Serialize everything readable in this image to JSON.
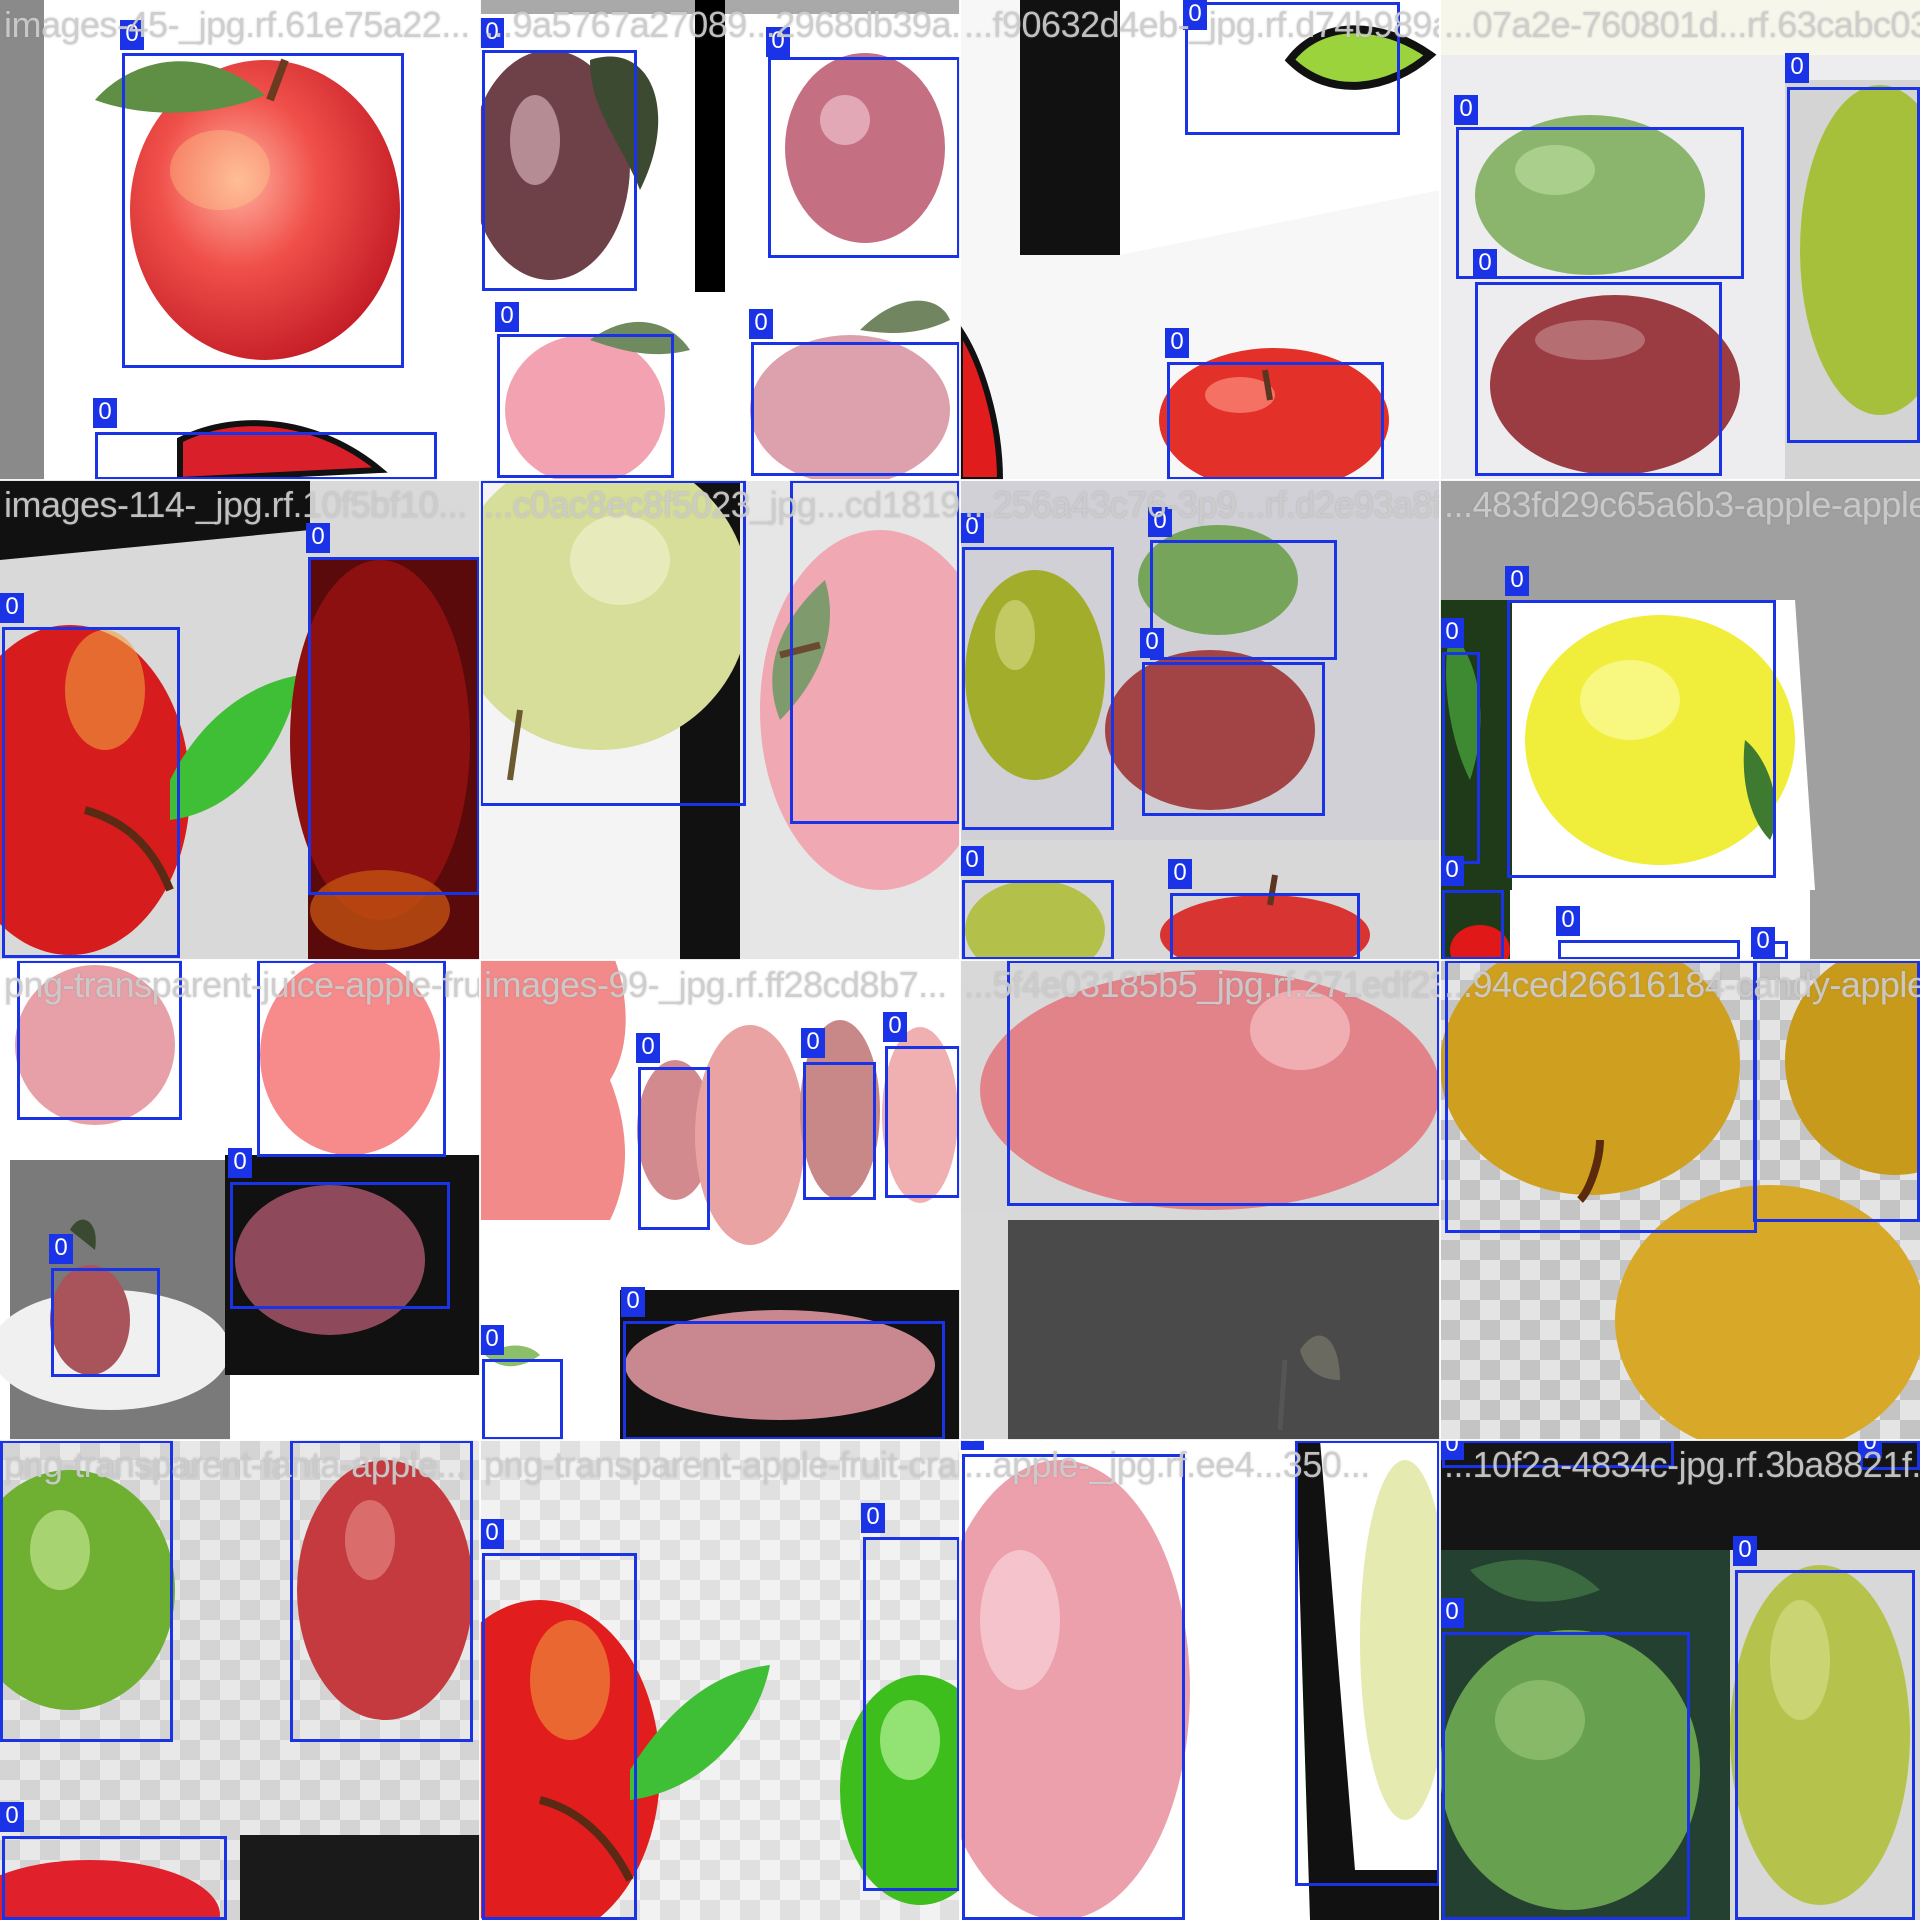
{
  "mosaic": {
    "class_label": "0",
    "filenames": [
      "images-45-_jpg.rf.61e75a22...",
      "...9a5767a27089...2968db39a...",
      "...f90632d4eb-_jpg.rf.d74b989a...",
      "...07a2e-760801d...rf.63cabc03...",
      "images-114-_jpg.rf.10f5bf10...",
      "...c0ac8ec8f5023_jpg...cd1819ff...",
      "...256a43c76-3p9...rf.d2e93a8fe...",
      "...483fd29c65a6b3-apple-apple...",
      "png-transparent-juice-apple-fruit...",
      "images-99-_jpg.rf.ff28cd8b7...",
      "...5f4e03185b5_jpg.rf.271edf23c...",
      "...94ced26616184-candy-apple...",
      "png-transparent-fanta-apple...",
      "png-transparent-apple-fruit-crab-apple...",
      "...apple-_jpg.rf.ee4...350...",
      "...10f2a-4834c-jpg.rf.3ba8821f..."
    ],
    "colors": {
      "box_color": "#1a33e6",
      "label_text": "#ffffff",
      "filename_text": "#cdcdcd"
    }
  }
}
